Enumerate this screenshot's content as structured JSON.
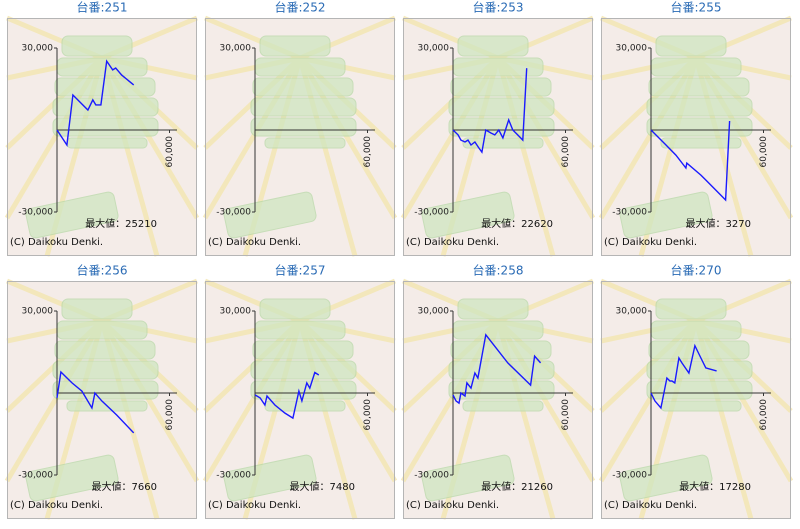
{
  "chart_data": [
    {
      "type": "line",
      "title": "台番:251",
      "color": "#1a1aff",
      "xlim": [
        0,
        64000
      ],
      "ylim": [
        -30000,
        30000
      ],
      "xticks": [
        {
          "value": 60000,
          "label": "60,000"
        }
      ],
      "yticks": [
        {
          "value": 30000,
          "label": "30,000"
        },
        {
          "value": -30000,
          "label": "-30,000"
        }
      ],
      "x": [
        0,
        5300,
        8500,
        16500,
        19100,
        20700,
        23400,
        26500,
        29700,
        31300,
        34500,
        40900
      ],
      "y": [
        0,
        -5500,
        12800,
        7300,
        11000,
        9200,
        9200,
        25200,
        22000,
        22700,
        20100,
        16500
      ],
      "annotation": "最大値：25210",
      "copyright": "(C) Daikoku Denki."
    },
    {
      "type": "line",
      "title": "台番:252",
      "color": "#1a1aff",
      "xlim": [
        0,
        64000
      ],
      "ylim": [
        -30000,
        30000
      ],
      "xticks": [
        {
          "value": 60000,
          "label": "60,000"
        }
      ],
      "yticks": [
        {
          "value": 30000,
          "label": "30,000"
        },
        {
          "value": -30000,
          "label": "-30,000"
        }
      ],
      "x": [],
      "y": [],
      "copyright": "(C) Daikoku Denki."
    },
    {
      "type": "line",
      "title": "台番:253",
      "color": "#1a1aff",
      "xlim": [
        0,
        64000
      ],
      "ylim": [
        -30000,
        30000
      ],
      "xticks": [
        {
          "value": 60000,
          "label": "60,000"
        }
      ],
      "yticks": [
        {
          "value": 30000,
          "label": "30,000"
        },
        {
          "value": -30000,
          "label": "-30,000"
        }
      ],
      "x": [
        0,
        2700,
        4200,
        6400,
        8000,
        9600,
        11700,
        13800,
        15400,
        17500,
        20200,
        22300,
        24400,
        26600,
        29700,
        31900,
        34500,
        37200,
        39300
      ],
      "y": [
        0,
        -1800,
        -3700,
        -4400,
        -3700,
        -5500,
        -4400,
        -6600,
        -8100,
        0,
        -1100,
        -1800,
        0,
        -2900,
        3700,
        0,
        -1800,
        -3700,
        22600
      ],
      "annotation": "最大値：22620",
      "copyright": "(C) Daikoku Denki."
    },
    {
      "type": "line",
      "title": "台番:255",
      "color": "#1a1aff",
      "xlim": [
        0,
        64000
      ],
      "ylim": [
        -30000,
        30000
      ],
      "xticks": [
        {
          "value": 60000,
          "label": "60,000"
        }
      ],
      "yticks": [
        {
          "value": 30000,
          "label": "30,000"
        },
        {
          "value": -30000,
          "label": "-30,000"
        }
      ],
      "x": [
        0,
        8000,
        13300,
        18600,
        19100,
        26600,
        29200,
        39800,
        41900
      ],
      "y": [
        0,
        -5500,
        -9200,
        -13900,
        -12100,
        -16500,
        -18300,
        -25600,
        3300
      ],
      "annotation": "最大値：3270",
      "copyright": "(C) Daikoku Denki."
    },
    {
      "type": "line",
      "title": "台番:256",
      "color": "#1a1aff",
      "xlim": [
        0,
        64000
      ],
      "ylim": [
        -30000,
        30000
      ],
      "xticks": [
        {
          "value": 60000,
          "label": "60,000"
        }
      ],
      "yticks": [
        {
          "value": 30000,
          "label": "30,000"
        },
        {
          "value": -30000,
          "label": "-30,000"
        }
      ],
      "x": [
        0,
        2100,
        8000,
        13300,
        18600,
        20200,
        23900,
        31900,
        40900
      ],
      "y": [
        -1800,
        7700,
        3700,
        700,
        -5500,
        0,
        -2900,
        -8100,
        -14600
      ],
      "annotation": "最大値：7660",
      "copyright": "(C) Daikoku Denki."
    },
    {
      "type": "line",
      "title": "台番:257",
      "color": "#1a1aff",
      "xlim": [
        0,
        64000
      ],
      "ylim": [
        -30000,
        30000
      ],
      "xticks": [
        {
          "value": 60000,
          "label": "60,000"
        }
      ],
      "yticks": [
        {
          "value": 30000,
          "label": "30,000"
        },
        {
          "value": -30000,
          "label": "-30,000"
        }
      ],
      "x": [
        0,
        2700,
        5300,
        6400,
        10600,
        15900,
        20200,
        23400,
        25000,
        27600,
        29200,
        31900,
        34000
      ],
      "y": [
        -700,
        -1800,
        -4400,
        -1100,
        -4400,
        -7300,
        -9200,
        700,
        -2900,
        3700,
        1800,
        7500,
        6600
      ],
      "annotation": "最大値：7480",
      "copyright": "(C) Daikoku Denki."
    },
    {
      "type": "line",
      "title": "台番:258",
      "color": "#1a1aff",
      "xlim": [
        0,
        64000
      ],
      "ylim": [
        -30000,
        30000
      ],
      "xticks": [
        {
          "value": 60000,
          "label": "60,000"
        }
      ],
      "yticks": [
        {
          "value": 30000,
          "label": "30,000"
        },
        {
          "value": -30000,
          "label": "-30,000"
        }
      ],
      "x": [
        0,
        1600,
        3200,
        4200,
        6400,
        7400,
        9600,
        11700,
        13300,
        17500,
        29200,
        41400,
        43500,
        46700
      ],
      "y": [
        -700,
        -2900,
        -3700,
        0,
        -1100,
        3700,
        1800,
        7300,
        5500,
        21300,
        11000,
        2900,
        13500,
        11000
      ],
      "annotation": "最大値：21260",
      "copyright": "(C) Daikoku Denki."
    },
    {
      "type": "line",
      "title": "台番:270",
      "color": "#1a1aff",
      "xlim": [
        0,
        64000
      ],
      "ylim": [
        -30000,
        30000
      ],
      "xticks": [
        {
          "value": 60000,
          "label": "60,000"
        }
      ],
      "yticks": [
        {
          "value": 30000,
          "label": "30,000"
        },
        {
          "value": -30000,
          "label": "-30,000"
        }
      ],
      "x": [
        0,
        2100,
        5300,
        8500,
        10100,
        11200,
        12700,
        14900,
        16500,
        20200,
        23400,
        26600,
        29200,
        35000
      ],
      "y": [
        0,
        -2900,
        -5500,
        5500,
        4400,
        4400,
        3700,
        12800,
        11000,
        7300,
        17300,
        12800,
        9200,
        8100
      ],
      "annotation": "最大値：17280",
      "copyright": "(C) Daikoku Denki."
    }
  ]
}
